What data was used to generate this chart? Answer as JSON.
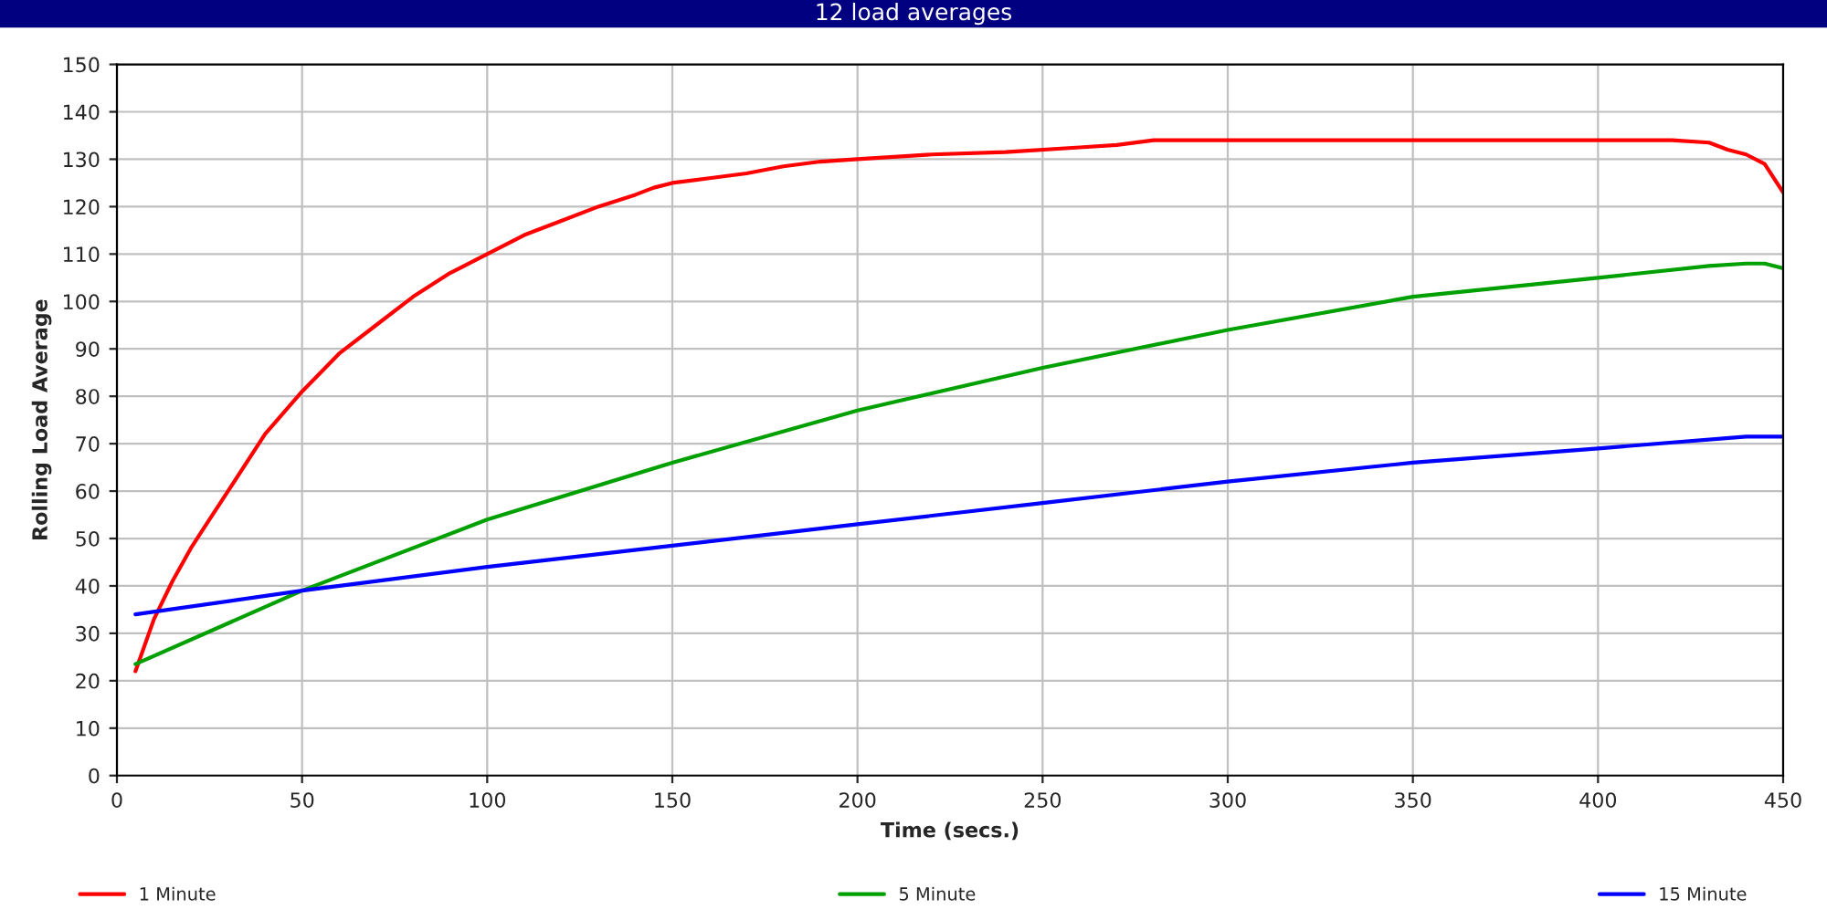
{
  "chart_data": {
    "type": "line",
    "title": "12 load averages",
    "xlabel": "Time (secs.)",
    "ylabel": "Rolling Load Average",
    "xlim": [
      0,
      450
    ],
    "xticks": [
      0,
      50,
      100,
      150,
      200,
      250,
      300,
      350,
      400,
      450
    ],
    "ylim": [
      0,
      150
    ],
    "yticks": [
      0,
      10,
      20,
      30,
      40,
      50,
      60,
      70,
      80,
      90,
      100,
      110,
      120,
      130,
      140,
      150
    ],
    "grid": true,
    "legend": "bottom",
    "marker": "none",
    "line_style": "solid",
    "series": [
      {
        "name": "1 Minute",
        "color": "#ff0000",
        "x": [
          5,
          10,
          15,
          20,
          25,
          30,
          40,
          50,
          60,
          70,
          80,
          90,
          100,
          110,
          120,
          130,
          140,
          145,
          150,
          160,
          170,
          180,
          190,
          200,
          220,
          240,
          260,
          270,
          280,
          300,
          320,
          340,
          360,
          380,
          400,
          420,
          430,
          435,
          440,
          445,
          450
        ],
        "values": [
          22,
          33,
          41,
          48,
          54,
          60,
          72,
          81,
          89,
          95,
          101,
          106,
          110,
          114,
          117,
          120,
          122.5,
          124,
          125,
          126,
          127,
          128.5,
          129.5,
          130,
          131,
          131.5,
          132.5,
          133,
          134,
          134,
          134,
          134,
          134,
          134,
          134,
          134,
          133.5,
          132,
          131,
          129,
          123
        ]
      },
      {
        "name": "5 Minute",
        "color": "#00a000",
        "x": [
          5,
          50,
          100,
          150,
          200,
          250,
          300,
          350,
          400,
          430,
          440,
          445,
          450
        ],
        "values": [
          23.5,
          39,
          54,
          66,
          77,
          86,
          94,
          101,
          105,
          107.5,
          108,
          108,
          107
        ]
      },
      {
        "name": "15 Minute",
        "color": "#0000ff",
        "x": [
          5,
          50,
          100,
          150,
          200,
          250,
          300,
          350,
          400,
          440,
          450
        ],
        "values": [
          34,
          39,
          44,
          48.5,
          53,
          57.5,
          62,
          66,
          69,
          71.5,
          71.5
        ]
      }
    ]
  }
}
